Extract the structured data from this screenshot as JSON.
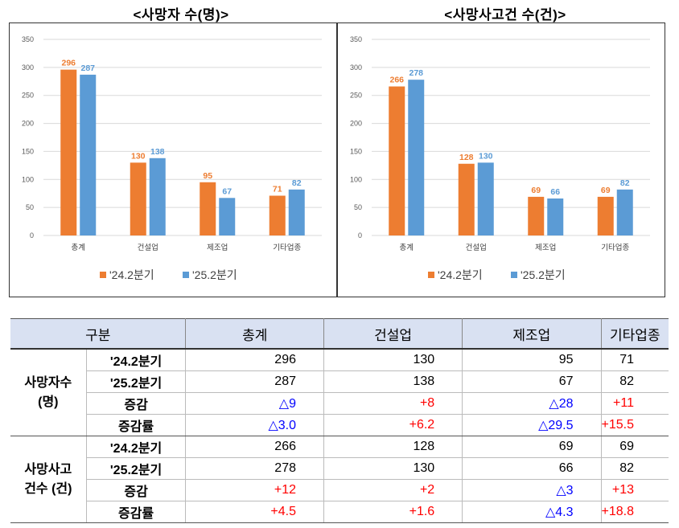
{
  "chart_data": [
    {
      "type": "bar",
      "title": "<사망자 수(명)>",
      "categories": [
        "총계",
        "건설업",
        "제조업",
        "기타업종"
      ],
      "series": [
        {
          "name": "'24.2분기",
          "values": [
            296,
            130,
            95,
            71
          ],
          "color": "#ed7d31"
        },
        {
          "name": "'25.2분기",
          "values": [
            287,
            138,
            67,
            82
          ],
          "color": "#5b9bd5"
        }
      ],
      "ylim": [
        0,
        350
      ],
      "yticks": [
        0,
        50,
        100,
        150,
        200,
        250,
        300,
        350
      ],
      "grid": true,
      "legend": "bottom"
    },
    {
      "type": "bar",
      "title": "<사망사고건 수(건)>",
      "categories": [
        "총계",
        "건설업",
        "제조업",
        "기타업종"
      ],
      "series": [
        {
          "name": "'24.2분기",
          "values": [
            266,
            128,
            69,
            69
          ],
          "color": "#ed7d31"
        },
        {
          "name": "'25.2분기",
          "values": [
            278,
            130,
            66,
            82
          ],
          "color": "#5b9bd5"
        }
      ],
      "ylim": [
        0,
        350
      ],
      "yticks": [
        0,
        50,
        100,
        150,
        200,
        250,
        300,
        350
      ],
      "grid": true,
      "legend": "bottom"
    }
  ],
  "table": {
    "headers": [
      "구분",
      "총계",
      "건설업",
      "제조업",
      "기타업종"
    ],
    "groups": [
      {
        "label_line1": "사망자수",
        "label_line2": "(명)",
        "rows": [
          {
            "label": "'24.2분기",
            "cells": [
              {
                "text": "296",
                "color": "black"
              },
              {
                "text": "130",
                "color": "black"
              },
              {
                "text": "95",
                "color": "black"
              },
              {
                "text": "71",
                "color": "black"
              }
            ]
          },
          {
            "label": "'25.2분기",
            "cells": [
              {
                "text": "287",
                "color": "black"
              },
              {
                "text": "138",
                "color": "black"
              },
              {
                "text": "67",
                "color": "black"
              },
              {
                "text": "82",
                "color": "black"
              }
            ]
          },
          {
            "label": "증감",
            "cells": [
              {
                "text": "△9",
                "color": "blue"
              },
              {
                "text": "+8",
                "color": "red"
              },
              {
                "text": "△28",
                "color": "blue"
              },
              {
                "text": "+11",
                "color": "red"
              }
            ]
          },
          {
            "label": "증감률",
            "cells": [
              {
                "text": "△3.0",
                "color": "blue"
              },
              {
                "text": "+6.2",
                "color": "red"
              },
              {
                "text": "△29.5",
                "color": "blue"
              },
              {
                "text": "+15.5",
                "color": "red"
              }
            ]
          }
        ]
      },
      {
        "label_line1": "사망사고",
        "label_line2": "건수 (건)",
        "rows": [
          {
            "label": "'24.2분기",
            "cells": [
              {
                "text": "266",
                "color": "black"
              },
              {
                "text": "128",
                "color": "black"
              },
              {
                "text": "69",
                "color": "black"
              },
              {
                "text": "69",
                "color": "black"
              }
            ]
          },
          {
            "label": "'25.2분기",
            "cells": [
              {
                "text": "278",
                "color": "black"
              },
              {
                "text": "130",
                "color": "black"
              },
              {
                "text": "66",
                "color": "black"
              },
              {
                "text": "82",
                "color": "black"
              }
            ]
          },
          {
            "label": "증감",
            "cells": [
              {
                "text": "+12",
                "color": "red"
              },
              {
                "text": "+2",
                "color": "red"
              },
              {
                "text": "△3",
                "color": "blue"
              },
              {
                "text": "+13",
                "color": "red"
              }
            ]
          },
          {
            "label": "증감률",
            "cells": [
              {
                "text": "+4.5",
                "color": "red"
              },
              {
                "text": "+1.6",
                "color": "red"
              },
              {
                "text": "△4.3",
                "color": "blue"
              },
              {
                "text": "+18.8",
                "color": "red"
              }
            ]
          }
        ]
      }
    ]
  }
}
